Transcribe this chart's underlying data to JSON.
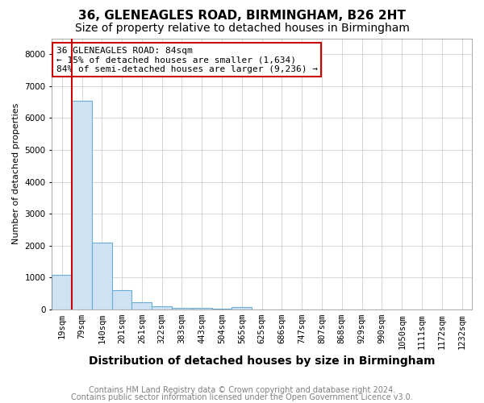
{
  "title": "36, GLENEAGLES ROAD, BIRMINGHAM, B26 2HT",
  "subtitle": "Size of property relative to detached houses in Birmingham",
  "xlabel": "Distribution of detached houses by size in Birmingham",
  "ylabel": "Number of detached properties",
  "categories": [
    "19sqm",
    "79sqm",
    "140sqm",
    "201sqm",
    "261sqm",
    "322sqm",
    "383sqm",
    "443sqm",
    "504sqm",
    "565sqm",
    "625sqm",
    "686sqm",
    "747sqm",
    "807sqm",
    "868sqm",
    "929sqm",
    "990sqm",
    "1050sqm",
    "1111sqm",
    "1172sqm",
    "1232sqm"
  ],
  "values": [
    1100,
    6550,
    2100,
    620,
    230,
    100,
    60,
    40,
    30,
    65,
    10,
    0,
    0,
    0,
    0,
    0,
    0,
    0,
    0,
    0,
    0
  ],
  "bar_color": "#cfe2f3",
  "bar_edgecolor": "#6aaed6",
  "redline_color": "#cc0000",
  "annotation_text": "36 GLENEAGLES ROAD: 84sqm\n← 15% of detached houses are smaller (1,634)\n84% of semi-detached houses are larger (9,236) →",
  "annotation_box_facecolor": "white",
  "annotation_box_edgecolor": "#cc0000",
  "footer1": "Contains HM Land Registry data © Crown copyright and database right 2024.",
  "footer2": "Contains public sector information licensed under the Open Government Licence v3.0.",
  "ylim": [
    0,
    8500
  ],
  "yticks": [
    0,
    1000,
    2000,
    3000,
    4000,
    5000,
    6000,
    7000,
    8000
  ],
  "title_fontsize": 11,
  "subtitle_fontsize": 10,
  "xlabel_fontsize": 10,
  "ylabel_fontsize": 8,
  "tick_fontsize": 7.5,
  "footer_fontsize": 7,
  "annotation_fontsize": 8,
  "redline_x": 1.5
}
